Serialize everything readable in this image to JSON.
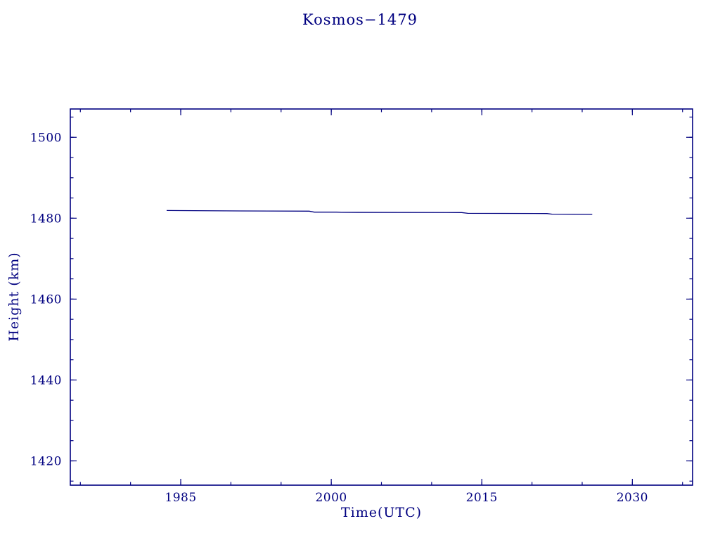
{
  "page": {
    "background": "#ffffff"
  },
  "chart_data": {
    "type": "line",
    "title": "Kosmos−1479",
    "xlabel": "Time(UTC)",
    "ylabel": "Height (km)",
    "xlim": [
      1974,
      2036
    ],
    "ylim": [
      1414,
      1507
    ],
    "xticks": [
      1985,
      2000,
      2015,
      2030
    ],
    "yticks": [
      1420,
      1440,
      1460,
      1480,
      1500
    ],
    "x_minor_step": 5,
    "y_minor_step": 5,
    "grid": false,
    "legend": "none",
    "axis_color": "#000080",
    "line_color": "#000080",
    "series": [
      {
        "name": "height-km",
        "points": [
          [
            1983.6,
            1481.9
          ],
          [
            1991.0,
            1481.8
          ],
          [
            1997.8,
            1481.75
          ],
          [
            1998.3,
            1481.5
          ],
          [
            2000.5,
            1481.5
          ],
          [
            2001.0,
            1481.45
          ],
          [
            2013.0,
            1481.4
          ],
          [
            2013.6,
            1481.2
          ],
          [
            2021.5,
            1481.15
          ],
          [
            2022.0,
            1481.0
          ],
          [
            2026.0,
            1480.95
          ]
        ]
      }
    ]
  }
}
